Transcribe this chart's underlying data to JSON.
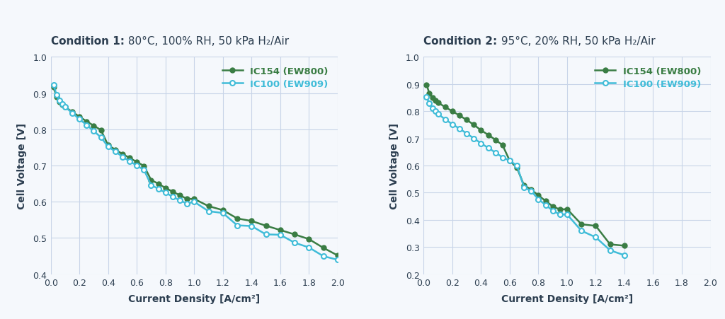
{
  "cond1_title_bold": "Condition 1:",
  "cond1_title_rest": " 80°C, 100% RH, 50 kPa H₂/Air",
  "cond2_title_bold": "Condition 2:",
  "cond2_title_rest": " 95°C, 20% RH, 50 kPa H₂/Air",
  "xlabel": "Current Density [A/cm²]",
  "ylabel": "Cell Voltage [V]",
  "color_ic154": "#3a7d44",
  "color_ic100": "#40bcd8",
  "label_ic154": "IC154 (EW800)",
  "label_ic100": "IC100 (EW909)",
  "cond1_ic154_x": [
    0.02,
    0.04,
    0.06,
    0.08,
    0.1,
    0.15,
    0.2,
    0.25,
    0.3,
    0.35,
    0.4,
    0.45,
    0.5,
    0.55,
    0.6,
    0.65,
    0.7,
    0.75,
    0.8,
    0.85,
    0.9,
    0.95,
    1.0,
    1.1,
    1.2,
    1.3,
    1.4,
    1.5,
    1.6,
    1.7,
    1.8,
    1.9,
    2.0
  ],
  "cond1_ic154_y": [
    0.916,
    0.89,
    0.875,
    0.868,
    0.862,
    0.848,
    0.835,
    0.822,
    0.81,
    0.798,
    0.756,
    0.744,
    0.732,
    0.721,
    0.71,
    0.699,
    0.66,
    0.65,
    0.638,
    0.628,
    0.618,
    0.608,
    0.608,
    0.588,
    0.577,
    0.554,
    0.547,
    0.534,
    0.522,
    0.51,
    0.497,
    0.473,
    0.452
  ],
  "cond1_ic100_x": [
    0.02,
    0.04,
    0.06,
    0.08,
    0.1,
    0.15,
    0.2,
    0.25,
    0.3,
    0.35,
    0.4,
    0.45,
    0.5,
    0.55,
    0.6,
    0.65,
    0.7,
    0.75,
    0.8,
    0.85,
    0.9,
    0.95,
    1.0,
    1.1,
    1.2,
    1.3,
    1.4,
    1.5,
    1.6,
    1.7,
    1.8,
    1.9,
    2.0
  ],
  "cond1_ic100_y": [
    0.922,
    0.896,
    0.88,
    0.87,
    0.862,
    0.845,
    0.828,
    0.812,
    0.795,
    0.778,
    0.752,
    0.739,
    0.724,
    0.712,
    0.7,
    0.688,
    0.646,
    0.636,
    0.625,
    0.614,
    0.604,
    0.595,
    0.6,
    0.574,
    0.569,
    0.535,
    0.533,
    0.51,
    0.509,
    0.487,
    0.474,
    0.45,
    0.44
  ],
  "cond2_ic154_x": [
    0.02,
    0.04,
    0.06,
    0.08,
    0.1,
    0.15,
    0.2,
    0.25,
    0.3,
    0.35,
    0.4,
    0.45,
    0.5,
    0.55,
    0.6,
    0.65,
    0.7,
    0.75,
    0.8,
    0.85,
    0.9,
    0.95,
    1.0,
    1.1,
    1.2,
    1.3,
    1.4
  ],
  "cond2_ic154_y": [
    0.898,
    0.865,
    0.85,
    0.84,
    0.832,
    0.815,
    0.8,
    0.784,
    0.768,
    0.75,
    0.73,
    0.713,
    0.695,
    0.675,
    0.618,
    0.592,
    0.527,
    0.512,
    0.49,
    0.47,
    0.45,
    0.438,
    0.44,
    0.384,
    0.378,
    0.31,
    0.305
  ],
  "cond2_ic100_x": [
    0.02,
    0.04,
    0.06,
    0.08,
    0.1,
    0.15,
    0.2,
    0.25,
    0.3,
    0.35,
    0.4,
    0.45,
    0.5,
    0.55,
    0.6,
    0.65,
    0.7,
    0.75,
    0.8,
    0.85,
    0.9,
    0.95,
    1.0,
    1.1,
    1.2,
    1.3,
    1.4
  ],
  "cond2_ic100_y": [
    0.852,
    0.828,
    0.812,
    0.8,
    0.79,
    0.77,
    0.752,
    0.736,
    0.718,
    0.7,
    0.682,
    0.665,
    0.648,
    0.63,
    0.618,
    0.6,
    0.52,
    0.506,
    0.476,
    0.455,
    0.434,
    0.42,
    0.42,
    0.36,
    0.336,
    0.288,
    0.27
  ],
  "xlim1": [
    0,
    2.0
  ],
  "xlim2": [
    0,
    2.0
  ],
  "ylim1": [
    0.4,
    1.0
  ],
  "ylim2": [
    0.2,
    1.0
  ],
  "xticks1": [
    0,
    0.2,
    0.4,
    0.6,
    0.8,
    1.0,
    1.2,
    1.4,
    1.6,
    1.8,
    2.0
  ],
  "xticks2": [
    0,
    0.2,
    0.4,
    0.6,
    0.8,
    1.0,
    1.2,
    1.4,
    1.6,
    1.8,
    2.0
  ],
  "yticks1": [
    0.4,
    0.5,
    0.6,
    0.7,
    0.8,
    0.9,
    1.0
  ],
  "yticks2": [
    0.2,
    0.3,
    0.4,
    0.5,
    0.6,
    0.7,
    0.8,
    0.9,
    1.0
  ],
  "background_color": "#f5f8fc",
  "plot_bg_color": "#f5f8fc",
  "grid_color": "#c8d4e8",
  "title_color": "#2c3e50",
  "axis_label_color": "#2c3e50",
  "tick_color": "#2c3e50",
  "marker_size": 5,
  "line_width": 1.8,
  "fig_width": 10.24,
  "fig_height": 4.52,
  "dpi": 100
}
